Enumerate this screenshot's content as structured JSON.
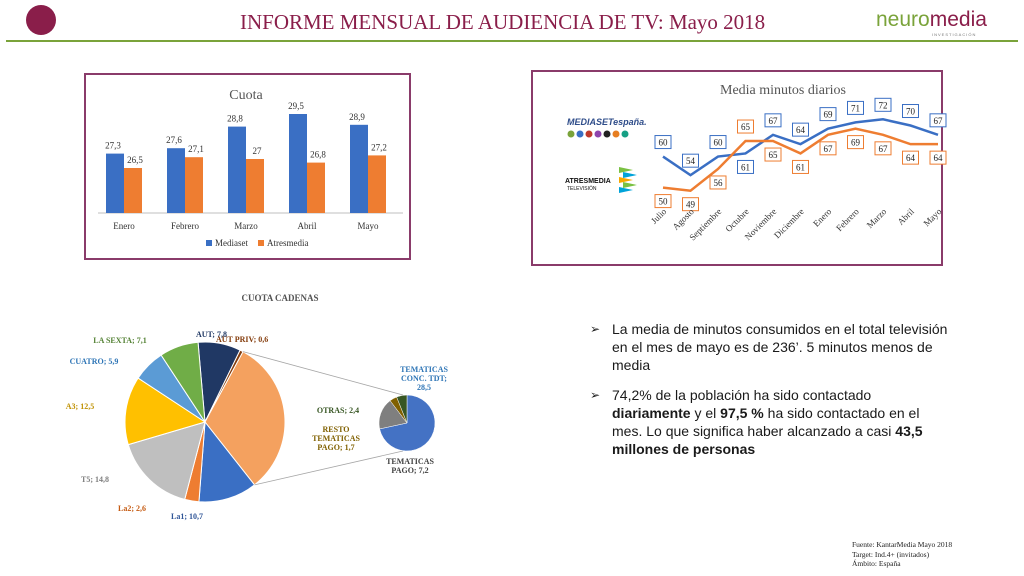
{
  "header": {
    "title": "INFORME MENSUAL DE AUDIENCIA DE TV: Mayo 2018",
    "brand_part1": "neuro",
    "brand_part2": "media",
    "brand_sub": "INVESTIGACIÓN",
    "colors": {
      "brand_purple": "#8a1e4a",
      "brand_green": "#7aa33a"
    }
  },
  "chart_data": [
    {
      "type": "bar",
      "title": "Cuota",
      "categories": [
        "Enero",
        "Febrero",
        "Marzo",
        "Abril",
        "Mayo"
      ],
      "series": [
        {
          "name": "Mediaset",
          "values": [
            27.3,
            27.6,
            28.8,
            29.5,
            28.9
          ],
          "labels": [
            "27,3",
            "27,6",
            "28,8",
            "29,5",
            "28,9"
          ],
          "color": "#3a6fc4"
        },
        {
          "name": "Atresmedia",
          "values": [
            26.5,
            27.1,
            27.0,
            26.8,
            27.2
          ],
          "labels": [
            "26,5",
            "27,1",
            "27",
            "26,8",
            "27,2"
          ],
          "color": "#ee7d31"
        }
      ],
      "legend": "bottom",
      "ylim": [
        24,
        30
      ]
    },
    {
      "type": "line",
      "title": "Media minutos diarios",
      "categories": [
        "Julio",
        "Agosto",
        "Septiembre",
        "Octubre",
        "Noviembre",
        "Diciembre",
        "Enero",
        "Febrero",
        "Marzo",
        "Abril",
        "Mayo"
      ],
      "series": [
        {
          "name": "Mediaset",
          "logo_text": "MEDIASETespaña.",
          "values": [
            60,
            54,
            60,
            61,
            67,
            64,
            69,
            71,
            72,
            70,
            67
          ],
          "color": "#3a6fc4"
        },
        {
          "name": "Atresmedia",
          "logo_text": "ATRESMEDIA",
          "logo_sub": "TELEVISIÓN",
          "values": [
            50,
            49,
            56,
            65,
            65,
            61,
            67,
            69,
            67,
            64,
            64
          ],
          "color": "#ee7d31"
        }
      ],
      "ylim": [
        46,
        75
      ]
    },
    {
      "type": "pie",
      "title": "CUOTA CADENAS",
      "slices": [
        {
          "name": "AUT",
          "label": "AUT; 7,8",
          "value": 7.8,
          "color": "#203864"
        },
        {
          "name": "AUT PRIV",
          "label": "AUT PRIV; 0,6",
          "value": 0.6,
          "color": "#843c0c"
        },
        {
          "name": "TEMATICAS CONC. TDT",
          "label": "TEMATICAS CONC. TDT; 28,5",
          "value": 28.5,
          "color": "#f4a15f"
        },
        {
          "name": "La1",
          "label": "La1; 10,7",
          "value": 10.7,
          "color": "#3a6fc4"
        },
        {
          "name": "La2",
          "label": "La2; 2,6",
          "value": 2.6,
          "color": "#ee7d31"
        },
        {
          "name": "T5",
          "label": "T5; 14,8",
          "value": 14.8,
          "color": "#bfbfbf"
        },
        {
          "name": "A3",
          "label": "A3; 12,5",
          "value": 12.5,
          "color": "#ffc000"
        },
        {
          "name": "CUATRO",
          "label": "CUATRO; 5,9",
          "value": 5.9,
          "color": "#5b9bd5"
        },
        {
          "name": "LA SEXTA",
          "label": "LA SEXTA; 7,1",
          "value": 7.1,
          "color": "#70ad47"
        }
      ],
      "sub_pie": [
        {
          "name": "TEMATICAS CONC. TDT",
          "label": "TEMATICAS CONC. TDT; 28,5",
          "value": 28.5,
          "color": "#4472c4"
        },
        {
          "name": "TEMATICAS PAGO",
          "label": "TEMATICAS PAGO; 7,2",
          "value": 7.2,
          "color": "#7f7f7f"
        },
        {
          "name": "RESTO TEMATICAS PAGO",
          "label": "RESTO TEMATICAS PAGO; 1,7",
          "value": 1.7,
          "color": "#806000"
        },
        {
          "name": "OTRAS",
          "label": "OTRAS; 2,4",
          "value": 2.4,
          "color": "#375623"
        }
      ]
    }
  ],
  "bullets": {
    "b1": "La media de minutos consumidos en el total televisión en el mes de mayo es de 236’. 5 minutos menos de media",
    "b2_pre": "74,2% de la población ha sido contactado ",
    "b2_bold1": "diariamente",
    "b2_mid": " y el ",
    "b2_bold2": "97,5 %",
    "b2_mid2": " ha sido contactado en el mes. Lo que significa haber alcanzado a casi ",
    "b2_bold3": "43,5 millones de personas"
  },
  "source": {
    "line1": "Fuente: KantarMedia Mayo 2018",
    "line2": "Target: Ind.4+ (invitados)",
    "line3": "Ámbito: España"
  }
}
